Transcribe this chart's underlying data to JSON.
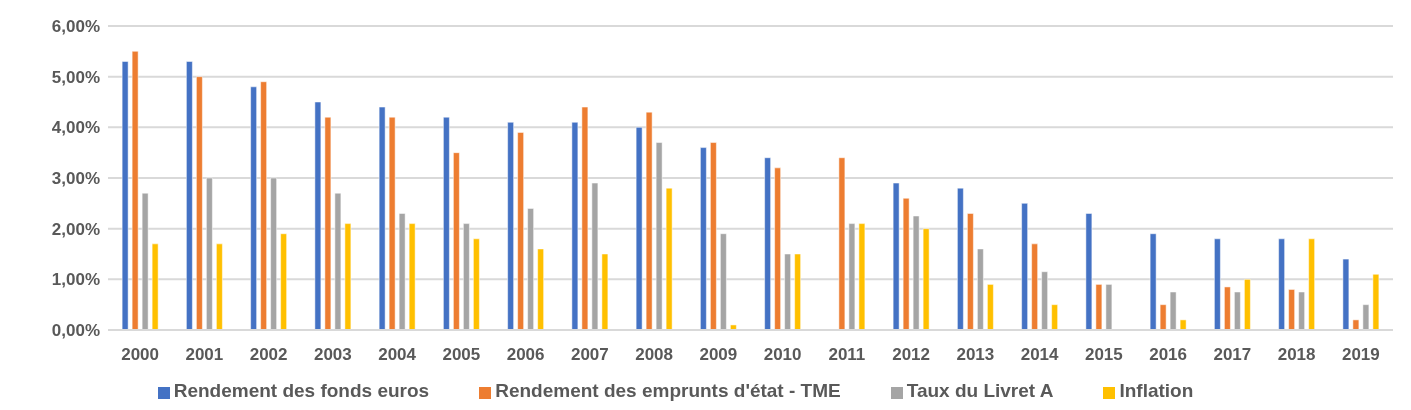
{
  "chart_data": {
    "type": "bar",
    "categories": [
      "2000",
      "2001",
      "2002",
      "2003",
      "2004",
      "2005",
      "2006",
      "2007",
      "2008",
      "2009",
      "2010",
      "2011",
      "2012",
      "2013",
      "2014",
      "2015",
      "2016",
      "2017",
      "2018",
      "2019"
    ],
    "series": [
      {
        "name": "Rendement des fonds euros",
        "color": "#4472c4",
        "values": [
          5.3,
          5.3,
          4.8,
          4.5,
          4.4,
          4.2,
          4.1,
          4.1,
          4.0,
          3.6,
          3.4,
          null,
          2.9,
          2.8,
          2.5,
          2.3,
          1.9,
          1.8,
          1.8,
          1.4
        ]
      },
      {
        "name": "Rendement des emprunts d'état - TME",
        "color": "#ed7d31",
        "values": [
          5.5,
          5.0,
          4.9,
          4.2,
          4.2,
          3.5,
          3.9,
          4.4,
          4.3,
          3.7,
          3.2,
          3.4,
          2.6,
          2.3,
          1.7,
          0.9,
          0.5,
          0.85,
          0.8,
          0.2
        ]
      },
      {
        "name": "Taux du Livret A",
        "color": "#a5a5a5",
        "values": [
          2.7,
          3.0,
          3.0,
          2.7,
          2.3,
          2.1,
          2.4,
          2.9,
          3.7,
          1.9,
          1.5,
          2.1,
          2.25,
          1.6,
          1.15,
          0.9,
          0.75,
          0.75,
          0.75,
          0.5
        ]
      },
      {
        "name": "Inflation",
        "color": "#ffc000",
        "values": [
          1.7,
          1.7,
          1.9,
          2.1,
          2.1,
          1.8,
          1.6,
          1.5,
          2.8,
          0.1,
          1.5,
          2.1,
          2.0,
          0.9,
          0.5,
          null,
          0.2,
          1.0,
          1.8,
          1.1
        ]
      }
    ],
    "ylim": [
      0,
      6
    ],
    "yticks": [
      {
        "value": 0,
        "label": "0,00%"
      },
      {
        "value": 1,
        "label": "1,00%"
      },
      {
        "value": 2,
        "label": "2,00%"
      },
      {
        "value": 3,
        "label": "3,00%"
      },
      {
        "value": 4,
        "label": "4,00%"
      },
      {
        "value": 5,
        "label": "5,00%"
      },
      {
        "value": 6,
        "label": "6,00%"
      }
    ],
    "grid": "y",
    "legend": "bottom"
  }
}
